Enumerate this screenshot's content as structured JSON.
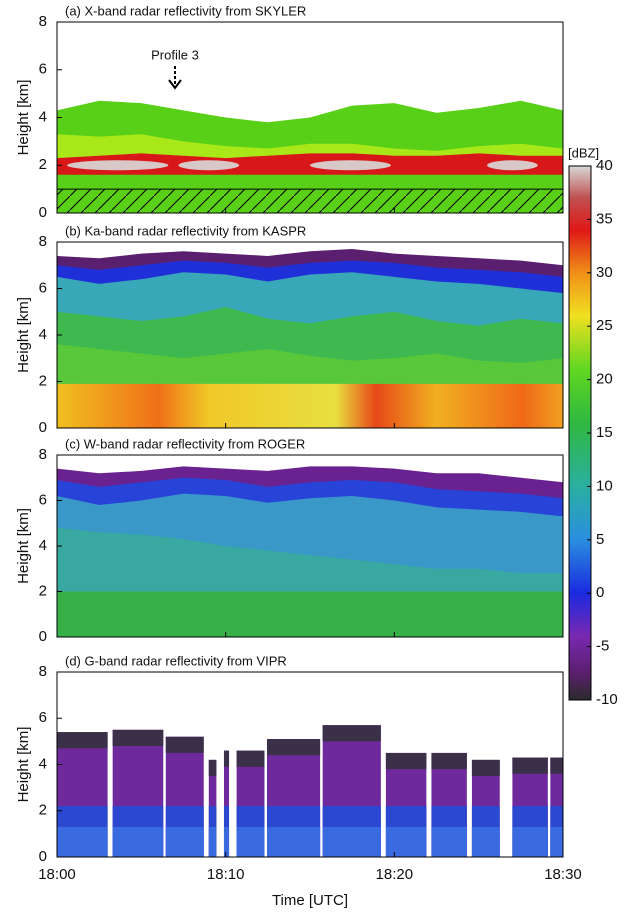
{
  "chart_data": [
    {
      "type": "heatmap",
      "title": "(a) X-band radar reflectivity from SKYLER",
      "ylabel": "Height [km]",
      "ylim": [
        0,
        8
      ],
      "yticks": [
        0,
        2,
        4,
        6,
        8
      ],
      "xlim": [
        "18:00",
        "18:30"
      ],
      "xticks": [
        "18:00",
        "18:10",
        "18:20",
        "18:30"
      ],
      "annotation": "Profile 3"
    },
    {
      "type": "heatmap",
      "title": "(b) Ka-band radar reflectivity from KASPR",
      "ylabel": "Height [km]",
      "ylim": [
        0,
        8
      ],
      "yticks": [
        0,
        2,
        4,
        6,
        8
      ],
      "xlim": [
        "18:00",
        "18:30"
      ],
      "xticks": [
        "18:00",
        "18:10",
        "18:20",
        "18:30"
      ]
    },
    {
      "type": "heatmap",
      "title": "(c) W-band radar reflectivity from ROGER",
      "ylabel": "Height [km]",
      "ylim": [
        0,
        8
      ],
      "yticks": [
        0,
        2,
        4,
        6,
        8
      ],
      "xlim": [
        "18:00",
        "18:30"
      ],
      "xticks": [
        "18:00",
        "18:10",
        "18:20",
        "18:30"
      ]
    },
    {
      "type": "heatmap",
      "title": "(d) G-band radar reflectivity from VIPR",
      "ylabel": "Height [km]",
      "xlabel": "Time [UTC]",
      "ylim": [
        0,
        8
      ],
      "yticks": [
        0,
        2,
        4,
        6,
        8
      ],
      "xlim": [
        "18:00",
        "18:30"
      ],
      "xticks": [
        "18:00",
        "18:10",
        "18:20",
        "18:30"
      ]
    }
  ],
  "colorbar": {
    "label": "[dBZ]",
    "lim": [
      -10,
      40
    ],
    "ticks": [
      -10,
      -5,
      0,
      5,
      10,
      15,
      20,
      25,
      30,
      35,
      40
    ]
  }
}
